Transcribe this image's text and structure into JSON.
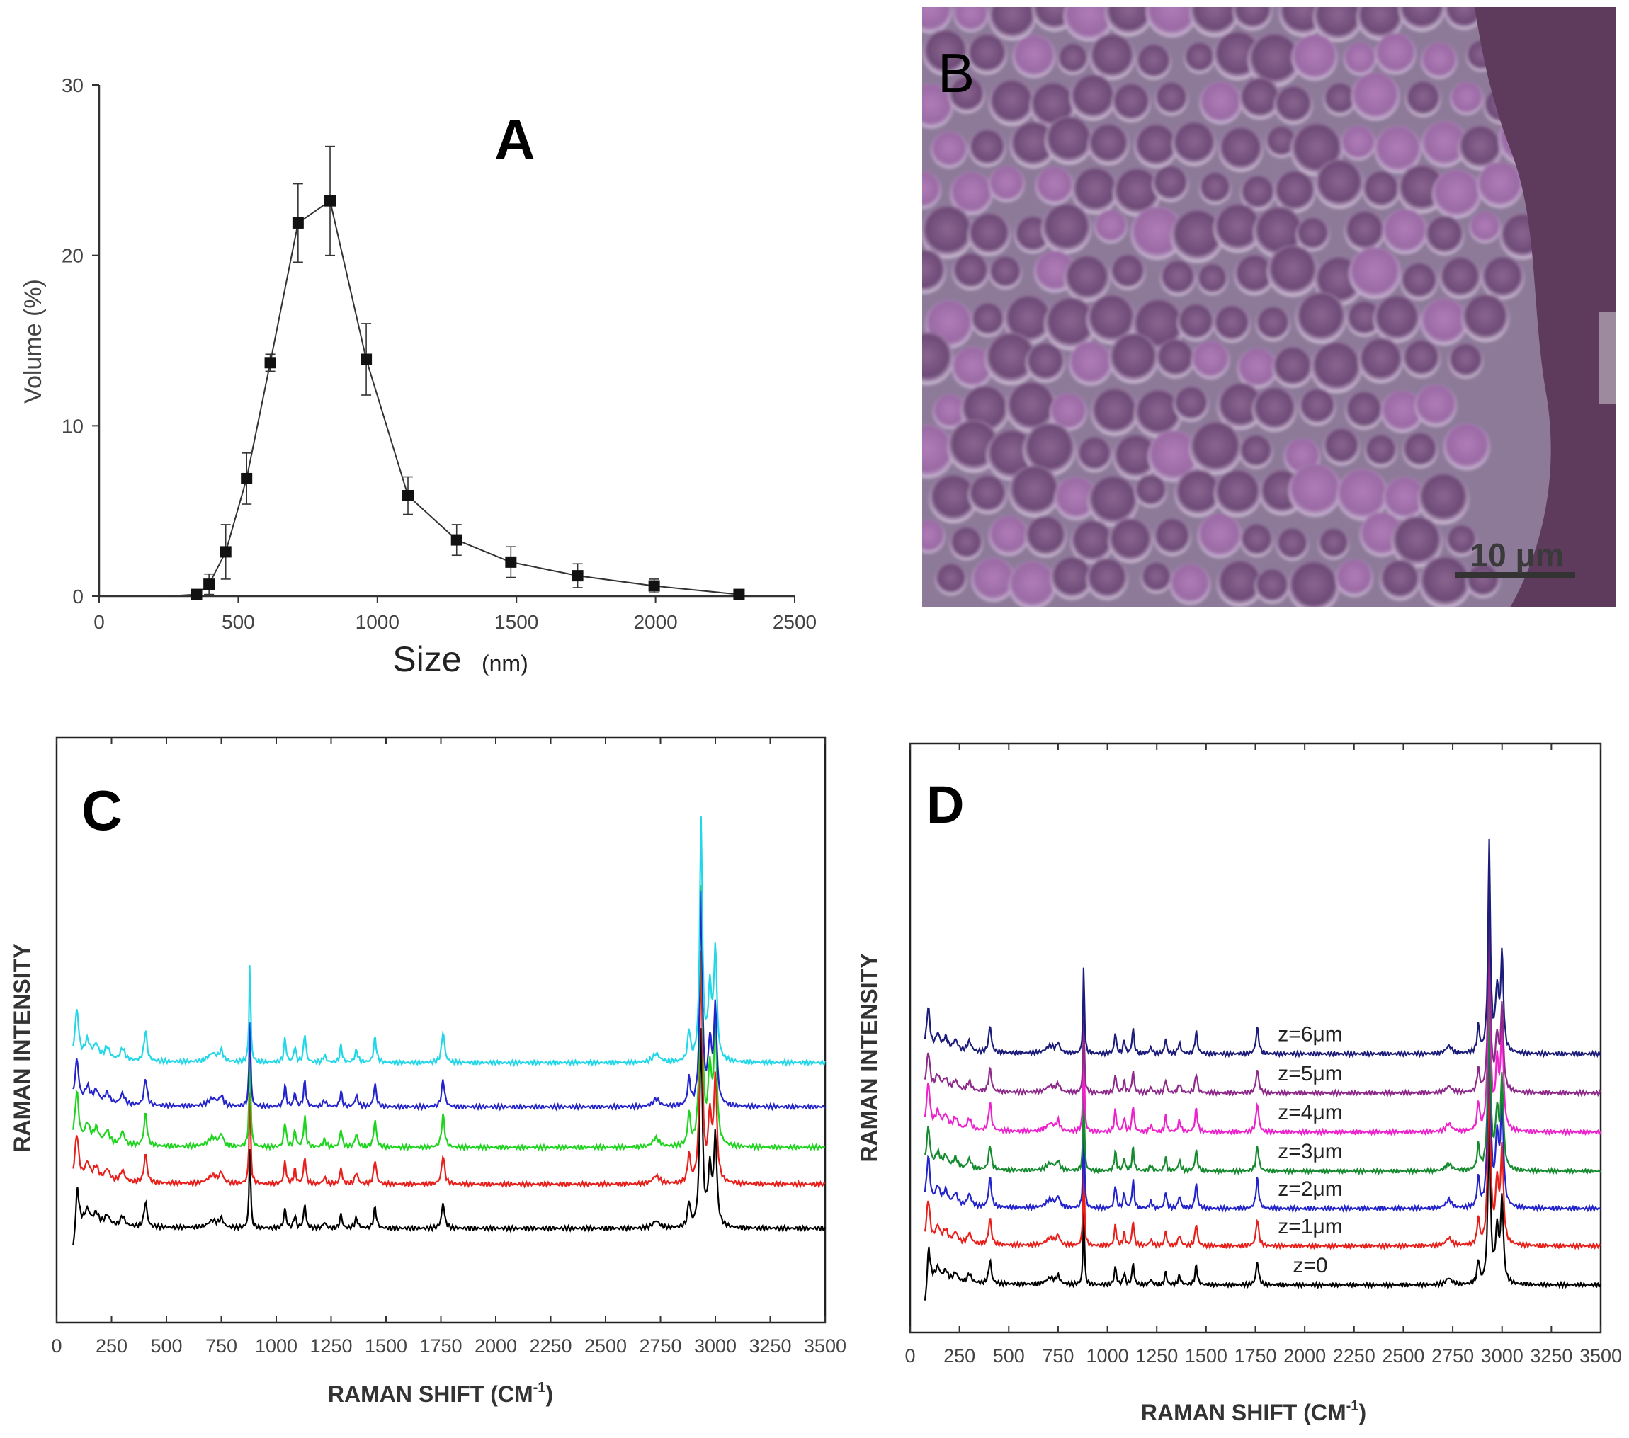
{
  "chart_data": [
    {
      "panel": "A",
      "type": "line",
      "xlabel": "Size",
      "xlabel_unit": "(nm)",
      "ylabel": "Volume (%)",
      "xlim": [
        0,
        2500
      ],
      "ylim": [
        0,
        30
      ],
      "xticks": [
        0,
        500,
        1000,
        1500,
        2000,
        2500
      ],
      "yticks": [
        0,
        10,
        20,
        30
      ],
      "points": [
        {
          "x": 0,
          "y": 0,
          "err": 0
        },
        {
          "x": 100,
          "y": 0,
          "err": 0
        },
        {
          "x": 200,
          "y": 0,
          "err": 0
        },
        {
          "x": 250,
          "y": 0,
          "err": 0
        },
        {
          "x": 350,
          "y": 0.1,
          "err": 0
        },
        {
          "x": 395,
          "y": 0.7,
          "err": 0.6
        },
        {
          "x": 455,
          "y": 2.6,
          "err": 1.6
        },
        {
          "x": 530,
          "y": 6.9,
          "err": 1.5
        },
        {
          "x": 615,
          "y": 13.7,
          "err": 0.5
        },
        {
          "x": 715,
          "y": 21.9,
          "err": 2.3
        },
        {
          "x": 830,
          "y": 23.2,
          "err": 3.2
        },
        {
          "x": 960,
          "y": 13.9,
          "err": 2.1
        },
        {
          "x": 1110,
          "y": 5.9,
          "err": 1.1
        },
        {
          "x": 1285,
          "y": 3.3,
          "err": 0.9
        },
        {
          "x": 1480,
          "y": 2.0,
          "err": 0.9
        },
        {
          "x": 1720,
          "y": 1.2,
          "err": 0.7
        },
        {
          "x": 1995,
          "y": 0.6,
          "err": 0.4
        },
        {
          "x": 2300,
          "y": 0.1,
          "err": 0.2
        }
      ],
      "err_from_index": 5
    },
    {
      "panel": "B",
      "type": "image",
      "scale_bar_label": "10 μm"
    },
    {
      "panel": "C",
      "type": "line",
      "xlabel": "RAMAN SHIFT (CM",
      "xlabel_sup": "-1",
      "xlabel_end": ")",
      "ylabel": "RAMAN INTENSITY",
      "xlim": [
        0,
        3500
      ],
      "xticks": [
        0,
        250,
        500,
        750,
        1000,
        1250,
        1500,
        1750,
        2000,
        2250,
        2500,
        2750,
        3000,
        3250,
        3500
      ],
      "series": [
        {
          "color": "#000000",
          "baseline": 0.0
        },
        {
          "color": "#e8201c",
          "baseline": 0.12
        },
        {
          "color": "#1ed41e",
          "baseline": 0.22
        },
        {
          "color": "#2424cc",
          "baseline": 0.33
        },
        {
          "color": "#22d8e8",
          "baseline": 0.45
        }
      ]
    },
    {
      "panel": "D",
      "type": "line",
      "xlabel": "RAMAN SHIFT (CM",
      "xlabel_sup": "-1",
      "xlabel_end": ")",
      "ylabel": "RAMAN INTENSITY",
      "xlim": [
        0,
        3500
      ],
      "xticks": [
        0,
        250,
        500,
        750,
        1000,
        1250,
        1500,
        1750,
        2000,
        2250,
        2500,
        2750,
        3000,
        3250,
        3500
      ],
      "series": [
        {
          "name": "z=0",
          "color": "#000000",
          "baseline": 0.0
        },
        {
          "name": "z=1μm",
          "color": "#e8201c",
          "baseline": 0.115
        },
        {
          "name": "z=2μm",
          "color": "#2424cc",
          "baseline": 0.225
        },
        {
          "name": "z=3μm",
          "color": "#158a2e",
          "baseline": 0.335
        },
        {
          "name": "z=4μm",
          "color": "#ee22cc",
          "baseline": 0.45
        },
        {
          "name": "z=5μm",
          "color": "#8e2a8a",
          "baseline": 0.565
        },
        {
          "name": "z=6μm",
          "color": "#1c1c7a",
          "baseline": 0.68
        }
      ]
    }
  ],
  "raman_peaks": [
    {
      "x": 92,
      "h": 0.14,
      "w": 10
    },
    {
      "x": 140,
      "h": 0.05,
      "w": 14
    },
    {
      "x": 180,
      "h": 0.04,
      "w": 14
    },
    {
      "x": 230,
      "h": 0.035,
      "w": 14
    },
    {
      "x": 300,
      "h": 0.035,
      "w": 12
    },
    {
      "x": 405,
      "h": 0.09,
      "w": 8
    },
    {
      "x": 710,
      "h": 0.025,
      "w": 25
    },
    {
      "x": 750,
      "h": 0.03,
      "w": 10
    },
    {
      "x": 880,
      "h": 0.3,
      "w": 4
    },
    {
      "x": 1040,
      "h": 0.07,
      "w": 6
    },
    {
      "x": 1085,
      "h": 0.045,
      "w": 6
    },
    {
      "x": 1130,
      "h": 0.085,
      "w": 6
    },
    {
      "x": 1220,
      "h": 0.02,
      "w": 8
    },
    {
      "x": 1295,
      "h": 0.05,
      "w": 6
    },
    {
      "x": 1365,
      "h": 0.035,
      "w": 8
    },
    {
      "x": 1450,
      "h": 0.075,
      "w": 7
    },
    {
      "x": 1760,
      "h": 0.09,
      "w": 8
    },
    {
      "x": 2730,
      "h": 0.025,
      "w": 18
    },
    {
      "x": 2880,
      "h": 0.09,
      "w": 7
    },
    {
      "x": 2935,
      "h": 0.7,
      "w": 7
    },
    {
      "x": 2975,
      "h": 0.2,
      "w": 10
    },
    {
      "x": 3000,
      "h": 0.32,
      "w": 8
    }
  ],
  "labels": {
    "panel_a": "A",
    "panel_b": "B",
    "panel_c": "C",
    "panel_d": "D"
  }
}
